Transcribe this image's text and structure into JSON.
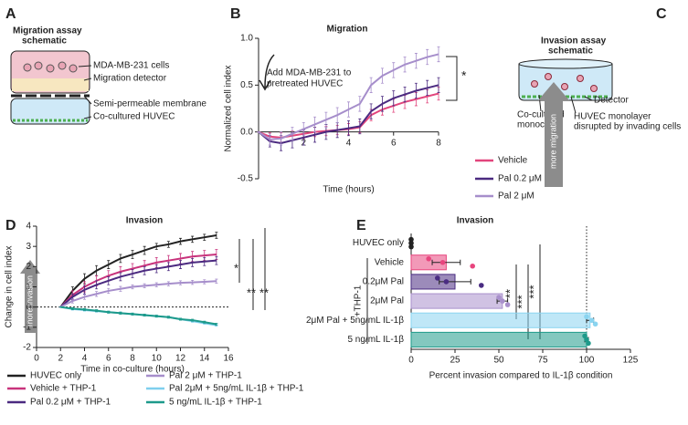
{
  "panel_labels": [
    "A",
    "B",
    "C",
    "D",
    "E"
  ],
  "schematic_a": {
    "title_lines": [
      "Migration assay",
      "schematic"
    ],
    "labels": [
      "MDA-MB-231 cells",
      "Migration detector",
      "Semi-permeable membrane",
      "Co-cultured HUVEC"
    ]
  },
  "schematic_c": {
    "title_lines": [
      "Invasion assay",
      "schematic"
    ],
    "labels": [
      "Co-cultured",
      "monocytes",
      "Detector",
      "HUVEC monolayer",
      "disrupted by invading cells"
    ]
  },
  "chart_data": [
    {
      "type": "line",
      "title": "Migration",
      "x_label": "Time (hours)",
      "y_label": "Normalized cell index",
      "x": [
        0,
        0.5,
        1,
        1.5,
        2,
        2.5,
        3,
        3.5,
        4,
        4.5,
        5,
        5.5,
        6,
        6.5,
        7,
        7.5,
        8
      ],
      "xlim": [
        0,
        8
      ],
      "xticks": [
        2,
        4,
        6,
        8
      ],
      "ylim": [
        -0.5,
        1
      ],
      "yticks": [
        -0.5,
        {
          "value": 0,
          "label": "0.0"
        },
        0.5,
        {
          "value": 1,
          "label": "1.0"
        }
      ],
      "series": [
        {
          "name": "Vehicle",
          "color": "#e2457c",
          "values": [
            0,
            -0.05,
            -0.06,
            -0.04,
            -0.02,
            0,
            0.01,
            0.02,
            0.03,
            0.05,
            0.18,
            0.24,
            0.28,
            0.32,
            0.35,
            0.38,
            0.41
          ],
          "errors": [
            0,
            0.04,
            0.05,
            0.05,
            0.05,
            0.05,
            0.05,
            0.05,
            0.06,
            0.06,
            0.06,
            0.06,
            0.07,
            0.07,
            0.07,
            0.07,
            0.07
          ]
        },
        {
          "name": "Pal 0.2 μM",
          "color": "#4b2a80",
          "values": [
            0,
            -0.1,
            -0.12,
            -0.09,
            -0.06,
            -0.03,
            0,
            0.02,
            0.04,
            0.06,
            0.22,
            0.3,
            0.36,
            0.4,
            0.44,
            0.47,
            0.5
          ],
          "errors": [
            0,
            0.06,
            0.08,
            0.08,
            0.08,
            0.08,
            0.08,
            0.08,
            0.08,
            0.08,
            0.08,
            0.08,
            0.08,
            0.08,
            0.08,
            0.08,
            0.08
          ]
        },
        {
          "name": "Pal 2 μM",
          "color": "#a68ecb",
          "values": [
            0,
            -0.08,
            -0.07,
            -0.02,
            0.03,
            0.08,
            0.13,
            0.18,
            0.24,
            0.3,
            0.5,
            0.6,
            0.66,
            0.72,
            0.76,
            0.8,
            0.83
          ],
          "errors": [
            0,
            0.06,
            0.07,
            0.07,
            0.07,
            0.08,
            0.08,
            0.08,
            0.08,
            0.08,
            0.08,
            0.08,
            0.08,
            0.08,
            0.08,
            0.08,
            0.08
          ]
        }
      ],
      "annotations": [
        "Add MDA-MB-231 to",
        "pretreated HUVEC",
        "*",
        "more migration"
      ]
    },
    {
      "type": "line",
      "title": "Invasion",
      "x_label": "Time in co-culture (hours)",
      "y_label": "Change in cell index",
      "x": [
        2,
        3,
        4,
        5,
        6,
        7,
        8,
        9,
        10,
        11,
        12,
        13,
        14,
        15
      ],
      "xlim": [
        0,
        16
      ],
      "xticks": [
        0,
        2,
        4,
        6,
        8,
        10,
        12,
        14,
        16
      ],
      "ylim": [
        -2,
        4
      ],
      "yticks": [
        -2,
        -1,
        0,
        1,
        2,
        3,
        4
      ],
      "reference_line": 0,
      "series": [
        {
          "name": "HUVEC only",
          "color": "#222222",
          "values": [
            0,
            0.8,
            1.4,
            1.8,
            2.1,
            2.4,
            2.6,
            2.8,
            3.0,
            3.1,
            3.25,
            3.35,
            3.45,
            3.55
          ],
          "errors": [
            0,
            0.2,
            0.25,
            0.25,
            0.2,
            0.2,
            0.2,
            0.2,
            0.15,
            0.15,
            0.15,
            0.15,
            0.15,
            0.15
          ]
        },
        {
          "name": "Vehicle + THP-1",
          "color": "#c8337c",
          "values": [
            0,
            0.6,
            1.0,
            1.3,
            1.55,
            1.75,
            1.9,
            2.05,
            2.2,
            2.3,
            2.4,
            2.5,
            2.55,
            2.6
          ],
          "errors": [
            0,
            0.2,
            0.25,
            0.25,
            0.25,
            0.25,
            0.25,
            0.25,
            0.25,
            0.25,
            0.25,
            0.25,
            0.25,
            0.25
          ]
        },
        {
          "name": "Pal 0.2 μM + THP-1",
          "color": "#4b2a80",
          "values": [
            0,
            0.5,
            0.85,
            1.1,
            1.3,
            1.5,
            1.65,
            1.8,
            1.9,
            2.0,
            2.1,
            2.2,
            2.25,
            2.3
          ],
          "errors": [
            0,
            0.15,
            0.2,
            0.2,
            0.2,
            0.2,
            0.2,
            0.2,
            0.2,
            0.2,
            0.2,
            0.2,
            0.2,
            0.2
          ]
        },
        {
          "name": "Pal 2 μM + THP-1",
          "color": "#a68ecb",
          "values": [
            0,
            0.3,
            0.5,
            0.65,
            0.8,
            0.9,
            1.0,
            1.05,
            1.1,
            1.15,
            1.2,
            1.22,
            1.25,
            1.28
          ],
          "errors": [
            0,
            0.1,
            0.12,
            0.12,
            0.12,
            0.12,
            0.1,
            0.1,
            0.1,
            0.1,
            0.1,
            0.1,
            0.1,
            0.1
          ]
        },
        {
          "name": "Pal 2μM + 5ng/mL IL-1β + THP-1",
          "color": "#7fcfee",
          "values": [
            0,
            -0.1,
            -0.15,
            -0.2,
            -0.25,
            -0.3,
            -0.35,
            -0.4,
            -0.45,
            -0.5,
            -0.6,
            -0.7,
            -0.8,
            -0.9
          ],
          "errors": [
            0,
            0.05,
            0.05,
            0.05,
            0.05,
            0.05,
            0.05,
            0.05,
            0.05,
            0.05,
            0.05,
            0.05,
            0.05,
            0.05
          ]
        },
        {
          "name": "5 ng/mL IL-1β + THP-1",
          "color": "#1d9a8b",
          "values": [
            0,
            -0.08,
            -0.12,
            -0.18,
            -0.25,
            -0.3,
            -0.35,
            -0.4,
            -0.45,
            -0.5,
            -0.6,
            -0.65,
            -0.75,
            -0.85
          ],
          "errors": [
            0,
            0.05,
            0.05,
            0.05,
            0.05,
            0.05,
            0.05,
            0.05,
            0.05,
            0.05,
            0.05,
            0.05,
            0.05,
            0.05
          ]
        }
      ],
      "annotations": [
        "more invasion",
        "*",
        "**",
        "**"
      ]
    },
    {
      "type": "hbar",
      "title": "Invasion",
      "x_label": "Percent invasion compared to IL-1β condition",
      "categories": [
        "HUVEC only",
        "Vehicle",
        "0.2μM Pal",
        "2μM Pal",
        "2μM Pal + 5ng/mL IL-1β",
        "5 ng/mL IL-1β"
      ],
      "values": [
        0,
        20,
        25,
        52,
        102,
        100
      ],
      "errors": [
        0,
        8,
        9,
        3,
        2,
        1
      ],
      "points": [
        [
          0,
          0,
          0
        ],
        [
          10,
          18,
          35
        ],
        [
          15,
          20,
          40
        ],
        [
          50,
          52,
          55
        ],
        [
          100,
          103,
          105
        ],
        [
          99,
          100,
          101
        ]
      ],
      "colors": [
        "#222222",
        "#e8457e",
        "#4a2c82",
        "#a990cc",
        "#8ad4f0",
        "#1e9a8a"
      ],
      "xlim": [
        0,
        125
      ],
      "xticks": [
        0,
        25,
        50,
        75,
        100,
        125
      ],
      "reference_line": 100,
      "annotations": [
        "+THP-1",
        "**",
        "***",
        "***"
      ]
    }
  ]
}
